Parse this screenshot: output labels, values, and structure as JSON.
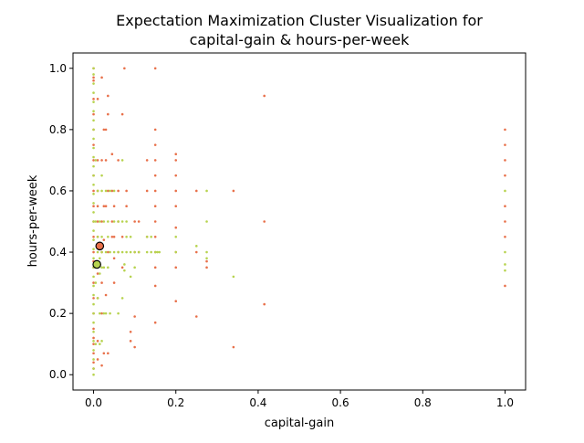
{
  "chart_data": {
    "type": "scatter",
    "title_lines": [
      "Expectation Maximization Cluster Visualization for",
      "capital-gain & hours-per-week"
    ],
    "xlabel": "capital-gain",
    "ylabel": "hours-per-week",
    "xlim": [
      -0.05,
      1.05
    ],
    "ylim": [
      -0.05,
      1.05
    ],
    "xticks": [
      0.0,
      0.2,
      0.4,
      0.6,
      0.8,
      1.0
    ],
    "yticks": [
      0.0,
      0.2,
      0.4,
      0.6,
      0.8,
      1.0
    ],
    "tick_labels": [
      "0.0",
      "0.2",
      "0.4",
      "0.6",
      "0.8",
      "1.0"
    ],
    "grid": false,
    "legend": "none",
    "series": [
      {
        "color": "#e8704a",
        "points": [
          [
            0.0,
            0.02
          ],
          [
            0.0,
            0.04
          ],
          [
            0.0,
            0.07
          ],
          [
            0.0,
            0.1
          ],
          [
            0.0,
            0.12
          ],
          [
            0.0,
            0.15
          ],
          [
            0.0,
            0.2
          ],
          [
            0.0,
            0.25
          ],
          [
            0.0,
            0.3
          ],
          [
            0.0,
            0.35
          ],
          [
            0.0,
            0.37
          ],
          [
            0.0,
            0.4
          ],
          [
            0.0,
            0.45
          ],
          [
            0.0,
            0.5
          ],
          [
            0.0,
            0.55
          ],
          [
            0.0,
            0.6
          ],
          [
            0.0,
            0.65
          ],
          [
            0.0,
            0.7
          ],
          [
            0.0,
            0.75
          ],
          [
            0.0,
            0.8
          ],
          [
            0.0,
            0.85
          ],
          [
            0.0,
            0.9
          ],
          [
            0.0,
            0.96
          ],
          [
            0.0,
            0.97
          ],
          [
            0.0,
            1.0
          ],
          [
            0.01,
            0.05
          ],
          [
            0.01,
            0.11
          ],
          [
            0.01,
            0.25
          ],
          [
            0.01,
            0.33
          ],
          [
            0.01,
            0.45
          ],
          [
            0.01,
            0.5
          ],
          [
            0.01,
            0.55
          ],
          [
            0.01,
            0.6
          ],
          [
            0.01,
            0.7
          ],
          [
            0.01,
            0.9
          ],
          [
            0.02,
            0.03
          ],
          [
            0.02,
            0.2
          ],
          [
            0.02,
            0.3
          ],
          [
            0.02,
            0.4
          ],
          [
            0.02,
            0.5
          ],
          [
            0.02,
            0.7
          ],
          [
            0.02,
            0.97
          ],
          [
            0.025,
            0.07
          ],
          [
            0.025,
            0.44
          ],
          [
            0.025,
            0.55
          ],
          [
            0.025,
            0.8
          ],
          [
            0.03,
            0.26
          ],
          [
            0.03,
            0.55
          ],
          [
            0.03,
            0.7
          ],
          [
            0.03,
            0.8
          ],
          [
            0.035,
            0.07
          ],
          [
            0.035,
            0.4
          ],
          [
            0.035,
            0.6
          ],
          [
            0.035,
            0.85
          ],
          [
            0.035,
            0.91
          ],
          [
            0.045,
            0.45
          ],
          [
            0.045,
            0.5
          ],
          [
            0.045,
            0.6
          ],
          [
            0.045,
            0.72
          ],
          [
            0.05,
            0.3
          ],
          [
            0.05,
            0.38
          ],
          [
            0.05,
            0.45
          ],
          [
            0.05,
            0.55
          ],
          [
            0.06,
            0.4
          ],
          [
            0.06,
            0.5
          ],
          [
            0.06,
            0.6
          ],
          [
            0.06,
            0.7
          ],
          [
            0.07,
            0.35
          ],
          [
            0.07,
            0.45
          ],
          [
            0.07,
            0.85
          ],
          [
            0.075,
            1.0
          ],
          [
            0.08,
            0.55
          ],
          [
            0.08,
            0.6
          ],
          [
            0.09,
            0.14
          ],
          [
            0.09,
            0.11
          ],
          [
            0.1,
            0.09
          ],
          [
            0.1,
            0.19
          ],
          [
            0.1,
            0.4
          ],
          [
            0.1,
            0.5
          ],
          [
            0.11,
            0.4
          ],
          [
            0.11,
            0.5
          ],
          [
            0.13,
            0.45
          ],
          [
            0.13,
            0.6
          ],
          [
            0.13,
            0.7
          ],
          [
            0.15,
            0.17
          ],
          [
            0.15,
            0.29
          ],
          [
            0.15,
            0.35
          ],
          [
            0.15,
            0.4
          ],
          [
            0.15,
            0.45
          ],
          [
            0.15,
            0.5
          ],
          [
            0.15,
            0.55
          ],
          [
            0.15,
            0.6
          ],
          [
            0.15,
            0.65
          ],
          [
            0.15,
            0.7
          ],
          [
            0.15,
            0.75
          ],
          [
            0.15,
            0.8
          ],
          [
            0.15,
            1.0
          ],
          [
            0.2,
            0.24
          ],
          [
            0.2,
            0.35
          ],
          [
            0.2,
            0.4
          ],
          [
            0.2,
            0.48
          ],
          [
            0.2,
            0.55
          ],
          [
            0.2,
            0.6
          ],
          [
            0.2,
            0.65
          ],
          [
            0.2,
            0.7
          ],
          [
            0.2,
            0.72
          ],
          [
            0.25,
            0.19
          ],
          [
            0.25,
            0.4
          ],
          [
            0.25,
            0.6
          ],
          [
            0.275,
            0.35
          ],
          [
            0.275,
            0.37
          ],
          [
            0.34,
            0.09
          ],
          [
            0.34,
            0.6
          ],
          [
            0.415,
            0.23
          ],
          [
            0.415,
            0.5
          ],
          [
            0.415,
            0.91
          ],
          [
            1.0,
            0.29
          ],
          [
            1.0,
            0.45
          ],
          [
            1.0,
            0.5
          ],
          [
            1.0,
            0.55
          ],
          [
            1.0,
            0.65
          ],
          [
            1.0,
            0.7
          ],
          [
            1.0,
            0.75
          ],
          [
            1.0,
            0.8
          ]
        ]
      },
      {
        "color": "#b7d34f",
        "points": [
          [
            0.0,
            0.0
          ],
          [
            0.0,
            0.02
          ],
          [
            0.0,
            0.05
          ],
          [
            0.0,
            0.08
          ],
          [
            0.0,
            0.11
          ],
          [
            0.0,
            0.14
          ],
          [
            0.0,
            0.17
          ],
          [
            0.0,
            0.2
          ],
          [
            0.0,
            0.23
          ],
          [
            0.0,
            0.26
          ],
          [
            0.0,
            0.29
          ],
          [
            0.0,
            0.32
          ],
          [
            0.0,
            0.35
          ],
          [
            0.0,
            0.38
          ],
          [
            0.0,
            0.41
          ],
          [
            0.0,
            0.44
          ],
          [
            0.0,
            0.47
          ],
          [
            0.0,
            0.5
          ],
          [
            0.0,
            0.53
          ],
          [
            0.0,
            0.56
          ],
          [
            0.0,
            0.59
          ],
          [
            0.0,
            0.62
          ],
          [
            0.0,
            0.65
          ],
          [
            0.0,
            0.68
          ],
          [
            0.0,
            0.71
          ],
          [
            0.0,
            0.74
          ],
          [
            0.0,
            0.77
          ],
          [
            0.0,
            0.8
          ],
          [
            0.0,
            0.83
          ],
          [
            0.0,
            0.86
          ],
          [
            0.0,
            0.89
          ],
          [
            0.0,
            0.92
          ],
          [
            0.0,
            0.95
          ],
          [
            0.0,
            0.98
          ],
          [
            0.0,
            1.0
          ],
          [
            0.005,
            0.1
          ],
          [
            0.005,
            0.3
          ],
          [
            0.005,
            0.5
          ],
          [
            0.005,
            0.7
          ],
          [
            0.01,
            0.25
          ],
          [
            0.01,
            0.35
          ],
          [
            0.01,
            0.4
          ],
          [
            0.01,
            0.45
          ],
          [
            0.01,
            0.6
          ],
          [
            0.015,
            0.1
          ],
          [
            0.015,
            0.2
          ],
          [
            0.015,
            0.33
          ],
          [
            0.015,
            0.38
          ],
          [
            0.015,
            0.5
          ],
          [
            0.02,
            0.11
          ],
          [
            0.02,
            0.35
          ],
          [
            0.02,
            0.4
          ],
          [
            0.02,
            0.45
          ],
          [
            0.02,
            0.6
          ],
          [
            0.02,
            0.65
          ],
          [
            0.025,
            0.2
          ],
          [
            0.025,
            0.35
          ],
          [
            0.025,
            0.5
          ],
          [
            0.03,
            0.2
          ],
          [
            0.03,
            0.4
          ],
          [
            0.03,
            0.6
          ],
          [
            0.035,
            0.35
          ],
          [
            0.035,
            0.45
          ],
          [
            0.035,
            0.5
          ],
          [
            0.04,
            0.2
          ],
          [
            0.04,
            0.4
          ],
          [
            0.04,
            0.6
          ],
          [
            0.05,
            0.4
          ],
          [
            0.05,
            0.5
          ],
          [
            0.05,
            0.6
          ],
          [
            0.06,
            0.2
          ],
          [
            0.06,
            0.4
          ],
          [
            0.06,
            0.5
          ],
          [
            0.07,
            0.25
          ],
          [
            0.07,
            0.4
          ],
          [
            0.07,
            0.5
          ],
          [
            0.07,
            0.7
          ],
          [
            0.075,
            0.34
          ],
          [
            0.075,
            0.36
          ],
          [
            0.08,
            0.4
          ],
          [
            0.08,
            0.45
          ],
          [
            0.08,
            0.5
          ],
          [
            0.09,
            0.32
          ],
          [
            0.09,
            0.4
          ],
          [
            0.09,
            0.45
          ],
          [
            0.1,
            0.35
          ],
          [
            0.1,
            0.4
          ],
          [
            0.11,
            0.4
          ],
          [
            0.13,
            0.4
          ],
          [
            0.13,
            0.45
          ],
          [
            0.14,
            0.4
          ],
          [
            0.14,
            0.45
          ],
          [
            0.15,
            0.4
          ],
          [
            0.155,
            0.4
          ],
          [
            0.16,
            0.4
          ],
          [
            0.2,
            0.4
          ],
          [
            0.2,
            0.45
          ],
          [
            0.25,
            0.42
          ],
          [
            0.275,
            0.38
          ],
          [
            0.275,
            0.4
          ],
          [
            0.275,
            0.5
          ],
          [
            0.275,
            0.6
          ],
          [
            0.34,
            0.32
          ],
          [
            1.0,
            0.34
          ],
          [
            1.0,
            0.36
          ],
          [
            1.0,
            0.4
          ],
          [
            1.0,
            0.6
          ]
        ]
      }
    ],
    "centroids": [
      {
        "x": 0.015,
        "y": 0.42,
        "color": "#e8704a"
      },
      {
        "x": 0.008,
        "y": 0.36,
        "color": "#b7d34f"
      }
    ]
  }
}
